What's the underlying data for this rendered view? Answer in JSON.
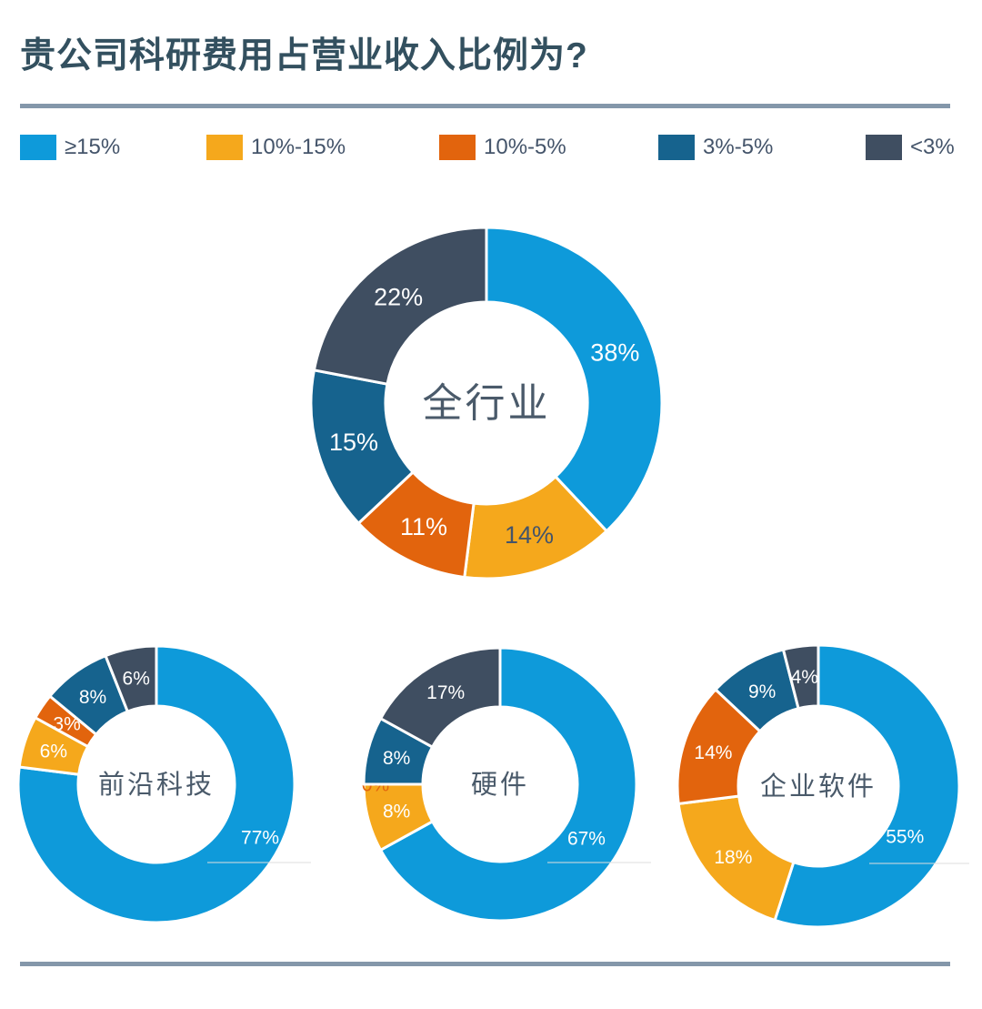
{
  "page": {
    "title": "贵公司科研费用占营业收入比例为?",
    "background": "#FFFFFF",
    "title_color": "#33505F",
    "divider_color": "#8497AA"
  },
  "chart_data": {
    "type": "pie",
    "subtype": "donut-multiples",
    "unit": "%",
    "title": "贵公司科研费用占营业收入比例为?",
    "legend_position": "top",
    "categories": [
      "≥15%",
      "10%-15%",
      "10%-5%",
      "3%-5%",
      "<3%"
    ],
    "series_colors": [
      "#0E9ADA",
      "#F5A81C",
      "#E2640D",
      "#16638E",
      "#3F4E61"
    ],
    "label_text_colors": {
      "light": "#FFFFFF",
      "dark": "#44546A"
    },
    "charts": [
      {
        "name": "全行业",
        "values": [
          38,
          14,
          11,
          15,
          22
        ],
        "labels": [
          "38%",
          "14%",
          "11%",
          "15%",
          "22%"
        ],
        "label_colors": [
          "#FFFFFF",
          "#44546A",
          "#FFFFFF",
          "#FFFFFF",
          "#FFFFFF"
        ]
      },
      {
        "name": "前沿科技",
        "values": [
          77,
          6,
          3,
          8,
          6
        ],
        "labels": [
          "77%",
          "6%",
          "3%",
          "8%",
          "6%"
        ],
        "label_colors": [
          "#FFFFFF",
          "#FFFFFF",
          "#FFFFFF",
          "#FFFFFF",
          "#FFFFFF"
        ]
      },
      {
        "name": "硬件",
        "values": [
          67,
          8,
          0,
          8,
          17
        ],
        "labels": [
          "67%",
          "8%",
          "0%",
          "8%",
          "17%"
        ],
        "label_colors": [
          "#FFFFFF",
          "#FFFFFF",
          "#E2640D",
          "#FFFFFF",
          "#FFFFFF"
        ]
      },
      {
        "name": "企业软件",
        "values": [
          55,
          18,
          14,
          9,
          4
        ],
        "labels": [
          "55%",
          "18%",
          "14%",
          "9%",
          "4%"
        ],
        "label_colors": [
          "#FFFFFF",
          "#FFFFFF",
          "#FFFFFF",
          "#FFFFFF",
          "#FFFFFF"
        ]
      }
    ]
  }
}
